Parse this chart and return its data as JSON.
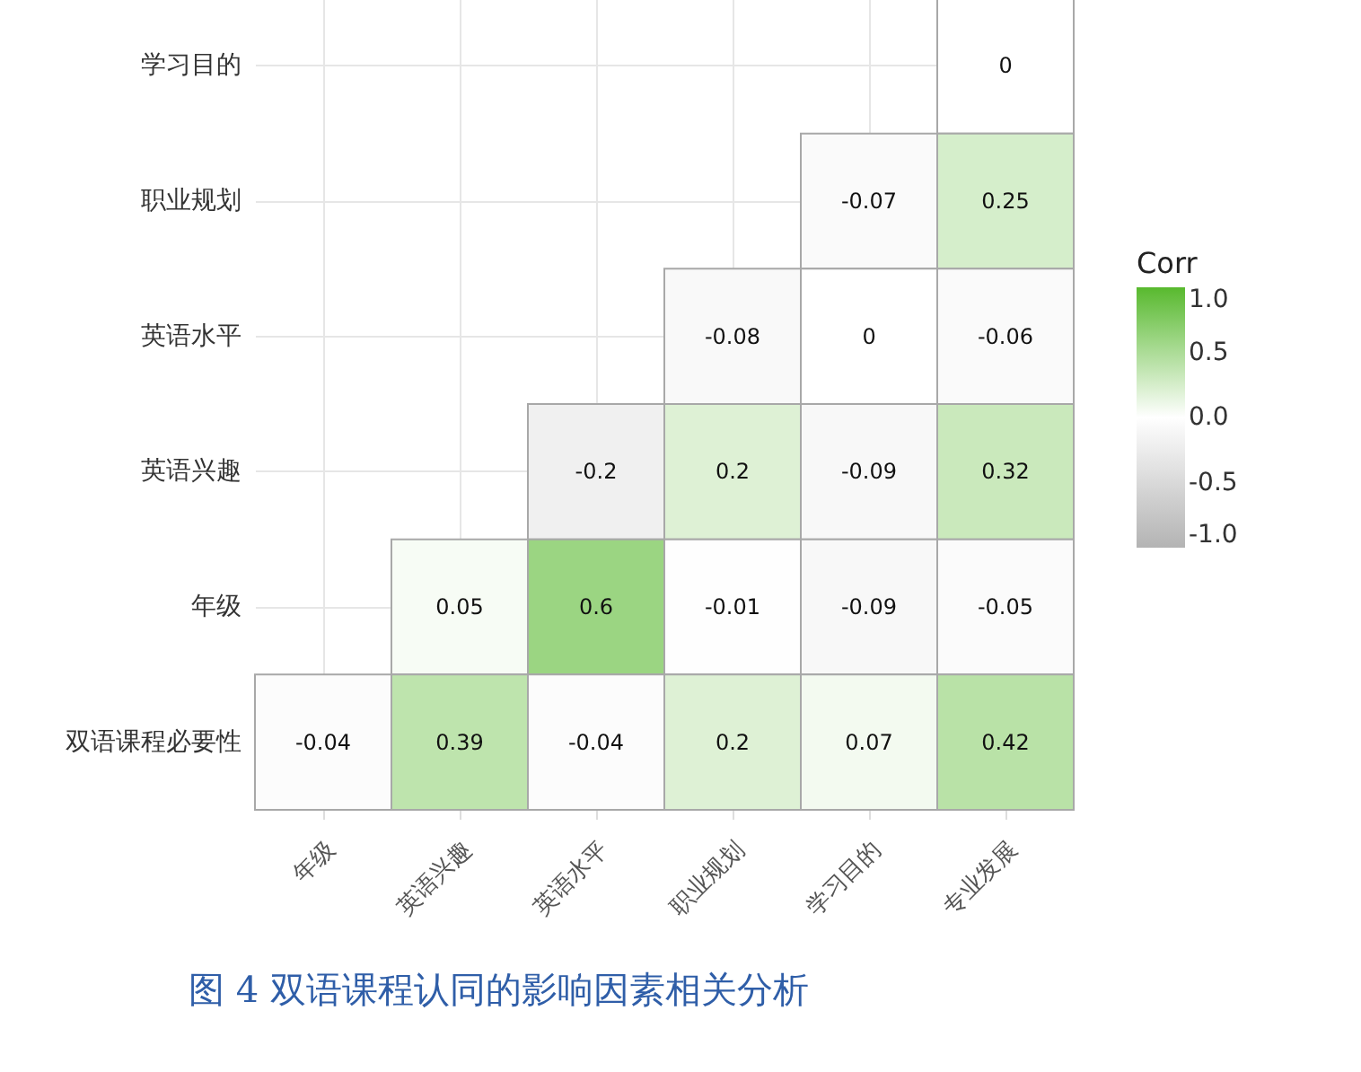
{
  "chart_data": {
    "type": "heatmap",
    "categories": [
      "年级",
      "英语兴趣",
      "英语水平",
      "职业规划",
      "学习目的",
      "专业发展"
    ],
    "y_categories": [
      "学习目的",
      "职业规划",
      "英语水平",
      "英语兴趣",
      "年级",
      "双语课程必要性"
    ],
    "cells": [
      [
        null,
        null,
        null,
        null,
        null,
        0
      ],
      [
        null,
        null,
        null,
        null,
        -0.07,
        0.25
      ],
      [
        null,
        null,
        null,
        -0.08,
        0,
        -0.06
      ],
      [
        null,
        null,
        -0.2,
        0.2,
        -0.09,
        0.32
      ],
      [
        null,
        0.05,
        0.6,
        -0.01,
        -0.09,
        -0.05
      ],
      [
        -0.04,
        0.39,
        -0.04,
        0.2,
        0.07,
        0.42
      ]
    ],
    "legend_title": "Corr",
    "clim": [
      -1,
      1
    ],
    "cticks": [
      {
        "value": 1,
        "label": "1.0"
      },
      {
        "value": 0.5,
        "label": "0.5"
      },
      {
        "value": 0,
        "label": "0.0"
      },
      {
        "value": -0.5,
        "label": "-0.5"
      },
      {
        "value": -1,
        "label": "-1.0"
      }
    ],
    "data_labels": true,
    "grid": true,
    "annotations": [
      "图 4 双语课程认同的影响因素相关分析"
    ]
  }
}
